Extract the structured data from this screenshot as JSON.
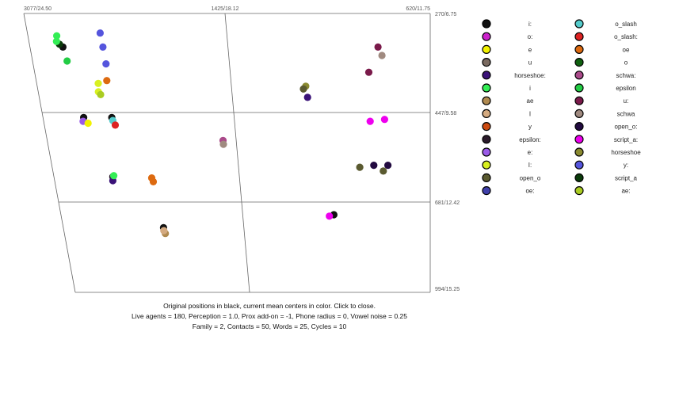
{
  "caption": {
    "line1": "Original positions in black, current mean centers in color. Click to close.",
    "line2": "Live agents = 180, Perception = 1.0, Prox add-on = -1, Phone radius = 0, Vowel noise = 0.25",
    "line3": "Family = 2, Contacts = 50, Words = 25, Cycles = 10"
  },
  "chart_data": {
    "type": "scatter",
    "x_ticks": [
      "3077/24.50",
      "1425/18.12",
      "620/11.75"
    ],
    "y_ticks": [
      "270/6.75",
      "447/9.58",
      "681/12.42",
      "994/15.25"
    ],
    "original_color": "#111111",
    "legend": [
      {
        "label": "i:",
        "color": "#111111"
      },
      {
        "label": "o:",
        "color": "#cc22cc"
      },
      {
        "label": "e",
        "color": "#f2f200"
      },
      {
        "label": "u",
        "color": "#7a6a60"
      },
      {
        "label": "horseshoe:",
        "color": "#3a1278"
      },
      {
        "label": "i",
        "color": "#33ee55"
      },
      {
        "label": "ae",
        "color": "#b08a50"
      },
      {
        "label": "I",
        "color": "#d4aa80"
      },
      {
        "label": "y",
        "color": "#cc4a10"
      },
      {
        "label": "epsilon:",
        "color": "#2a1a2a"
      },
      {
        "label": "e:",
        "color": "#9a5ae8"
      },
      {
        "label": "I:",
        "color": "#d8f020"
      },
      {
        "label": "open_o",
        "color": "#5a5a30"
      },
      {
        "label": "oe:",
        "color": "#4040aa"
      },
      {
        "label": "o_slash",
        "color": "#55cccc"
      },
      {
        "label": "o_slash:",
        "color": "#dd2222"
      },
      {
        "label": "oe",
        "color": "#dd6a10"
      },
      {
        "label": "o",
        "color": "#106010"
      },
      {
        "label": "schwa:",
        "color": "#aa4a8a"
      },
      {
        "label": "epsilon",
        "color": "#22cc44"
      },
      {
        "label": "u:",
        "color": "#7a1a4a"
      },
      {
        "label": "schwa",
        "color": "#a08a80"
      },
      {
        "label": "open_o:",
        "color": "#220a40"
      },
      {
        "label": "script_a:",
        "color": "#ee00ee"
      },
      {
        "label": "horseshoe",
        "color": "#8a8a30"
      },
      {
        "label": "y:",
        "color": "#5555dd"
      },
      {
        "label": "script_a",
        "color": "#0a3a0a"
      },
      {
        "label": "ae:",
        "color": "#aacc22"
      }
    ],
    "points": [
      {
        "f2": 2805,
        "f1": 330,
        "label": "i:"
      },
      {
        "f2": 2840,
        "f1": 310,
        "label": "i"
      },
      {
        "f2": 2790,
        "f1": 355,
        "label": "epsilon"
      },
      {
        "f2": 2830,
        "f1": 325,
        "label": "script_a"
      },
      {
        "f2": 2850,
        "f1": 320,
        "label": "i"
      },
      {
        "f2": 2480,
        "f1": 305,
        "label": "y:"
      },
      {
        "f2": 2475,
        "f1": 330,
        "label": "y:"
      },
      {
        "f2": 2470,
        "f1": 360,
        "label": "y:"
      },
      {
        "f2": 2485,
        "f1": 390,
        "label": "oe"
      },
      {
        "f2": 2560,
        "f1": 395,
        "label": "I:"
      },
      {
        "f2": 2570,
        "f1": 410,
        "label": "I:"
      },
      {
        "f2": 2555,
        "f1": 415,
        "label": "ae:"
      },
      {
        "f2": 2730,
        "f1": 460,
        "label": "i:"
      },
      {
        "f2": 2740,
        "f1": 470,
        "label": "e:"
      },
      {
        "f2": 2700,
        "f1": 475,
        "label": "e"
      },
      {
        "f2": 2490,
        "f1": 460,
        "label": "i:"
      },
      {
        "f2": 2485,
        "f1": 468,
        "label": "o_slash"
      },
      {
        "f2": 2470,
        "f1": 480,
        "label": "o_slash:"
      },
      {
        "f2": 2560,
        "f1": 615,
        "label": "epsilon:"
      },
      {
        "f2": 2565,
        "f1": 625,
        "label": "horseshoe:"
      },
      {
        "f2": 2550,
        "f1": 612,
        "label": "i"
      },
      {
        "f2": 2210,
        "f1": 628,
        "label": "oe"
      },
      {
        "f2": 2220,
        "f1": 618,
        "label": "oe"
      },
      {
        "f2": 2175,
        "f1": 770,
        "label": "i:"
      },
      {
        "f2": 2165,
        "f1": 790,
        "label": "ae"
      },
      {
        "f2": 2175,
        "f1": 780,
        "label": "I"
      },
      {
        "f2": 1560,
        "f1": 520,
        "label": "schwa:"
      },
      {
        "f2": 1560,
        "f1": 530,
        "label": "schwa"
      },
      {
        "f2": 1130,
        "f1": 400,
        "label": "horseshoe"
      },
      {
        "f2": 1125,
        "f1": 420,
        "label": "horseshoe:"
      },
      {
        "f2": 1140,
        "f1": 405,
        "label": "open_o"
      },
      {
        "f2": 830,
        "f1": 330,
        "label": "u:"
      },
      {
        "f2": 815,
        "f1": 345,
        "label": "schwa"
      },
      {
        "f2": 870,
        "f1": 375,
        "label": "u:"
      },
      {
        "f2": 810,
        "f1": 465,
        "label": "script_a:"
      },
      {
        "f2": 870,
        "f1": 470,
        "label": "script_a:"
      },
      {
        "f2": 860,
        "f1": 585,
        "label": "open_o:"
      },
      {
        "f2": 800,
        "f1": 585,
        "label": "open_o:"
      },
      {
        "f2": 920,
        "f1": 590,
        "label": "open_o"
      },
      {
        "f2": 820,
        "f1": 600,
        "label": "open_o"
      },
      {
        "f2": 1040,
        "f1": 725,
        "label": "i:"
      },
      {
        "f2": 1060,
        "f1": 730,
        "label": "script_a:"
      }
    ]
  }
}
